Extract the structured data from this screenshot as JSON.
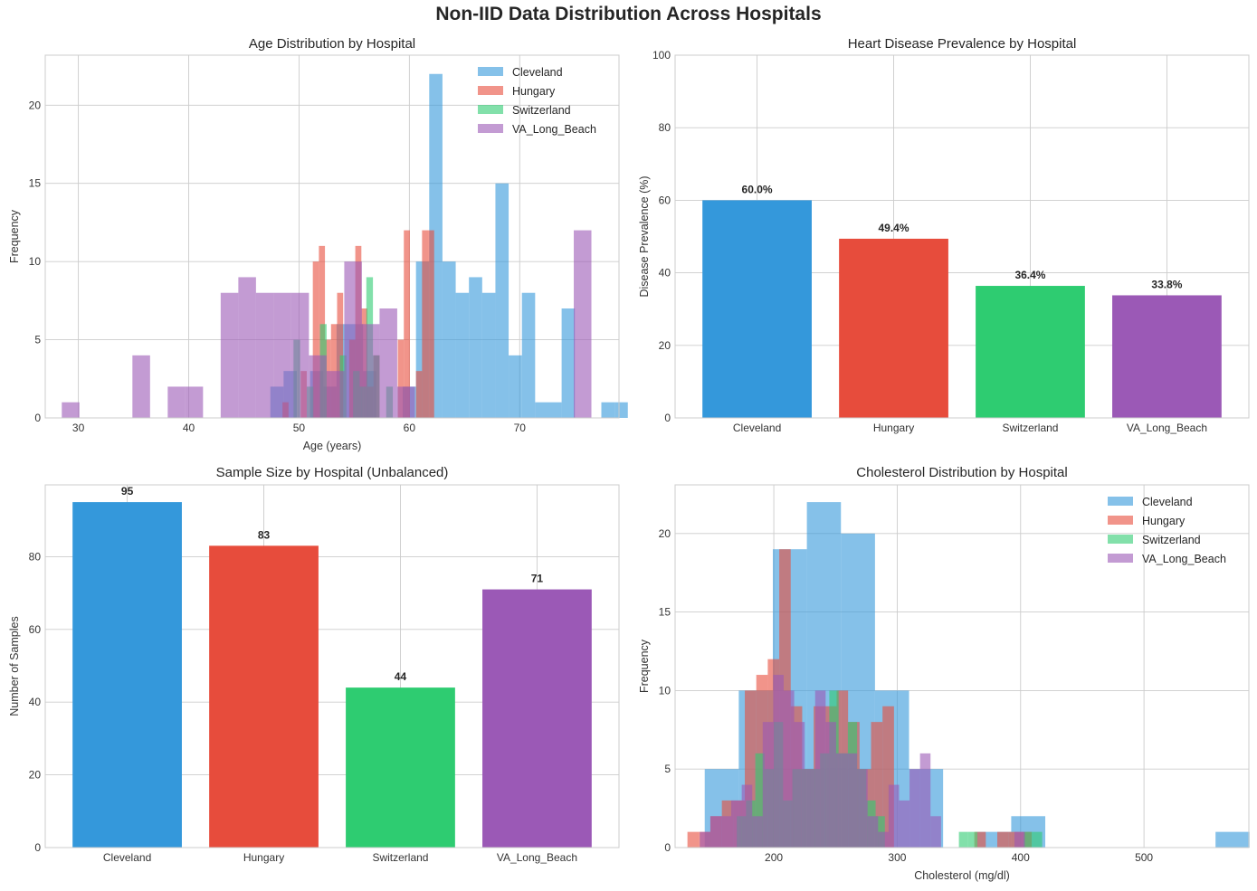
{
  "figure": {
    "title": "Non-IID Data Distribution Across Hospitals"
  },
  "colors": {
    "Cleveland": "#3498db",
    "Hungary": "#e74c3c",
    "Switzerland": "#2ecc71",
    "VA_Long_Beach": "#9b59b6"
  },
  "chart_data": [
    {
      "id": "age",
      "type": "histogram",
      "title": "Age Distribution by Hospital",
      "xlabel": "Age (years)",
      "ylabel": "Frequency",
      "xlim": [
        27,
        79
      ],
      "ylim": [
        0,
        23.2
      ],
      "xticks": [
        30,
        40,
        50,
        60,
        70
      ],
      "yticks": [
        0,
        5,
        10,
        15,
        20
      ],
      "legend": "top-right",
      "series": [
        {
          "name": "Cleveland",
          "bin_start": 47.4,
          "bin_width": 1.2,
          "counts": [
            2,
            3,
            0,
            3,
            2,
            6,
            6,
            3,
            0,
            0,
            2,
            10,
            22,
            10,
            8,
            9,
            8,
            15,
            4,
            8,
            1,
            1,
            7,
            0,
            0,
            1,
            1
          ]
        },
        {
          "name": "Hungary",
          "bin_start": 48.5,
          "bin_width": 0.55,
          "counts": [
            1,
            0,
            0,
            3,
            0,
            10,
            11,
            5,
            6,
            8,
            0,
            5,
            11,
            7,
            2,
            4,
            0,
            0,
            0,
            5,
            12,
            0,
            3,
            12,
            12
          ]
        },
        {
          "name": "Switzerland",
          "bin_start": 49.5,
          "bin_width": 0.6,
          "counts": [
            5,
            0,
            2,
            0,
            6,
            0,
            0,
            4,
            0,
            3,
            2,
            9,
            4,
            0,
            2
          ]
        },
        {
          "name": "VA_Long_Beach",
          "bin_start": 28.5,
          "bin_width": 1.6,
          "counts": [
            1,
            0,
            0,
            0,
            4,
            0,
            2,
            2,
            0,
            8,
            9,
            8,
            8,
            8,
            4,
            3,
            10,
            6,
            7,
            2,
            0,
            0,
            0,
            0,
            0,
            0,
            0,
            0,
            0,
            12,
            0
          ]
        }
      ]
    },
    {
      "id": "prevalence",
      "type": "bar",
      "title": "Heart Disease Prevalence by Hospital",
      "xlabel": "",
      "ylabel": "Disease Prevalence (%)",
      "categories": [
        "Cleveland",
        "Hungary",
        "Switzerland",
        "VA_Long_Beach"
      ],
      "values": [
        60.0,
        49.4,
        36.4,
        33.8
      ],
      "data_labels": [
        "60.0%",
        "49.4%",
        "36.4%",
        "33.8%"
      ],
      "ylim": [
        0,
        100
      ],
      "yticks": [
        0,
        20,
        40,
        60,
        80,
        100
      ]
    },
    {
      "id": "samples",
      "type": "bar",
      "title": "Sample Size by Hospital (Unbalanced)",
      "xlabel": "",
      "ylabel": "Number of Samples",
      "categories": [
        "Cleveland",
        "Hungary",
        "Switzerland",
        "VA_Long_Beach"
      ],
      "values": [
        95,
        83,
        44,
        71
      ],
      "data_labels": [
        "95",
        "83",
        "44",
        "71"
      ],
      "ylim": [
        0,
        99.75
      ],
      "yticks": [
        0,
        20,
        40,
        60,
        80
      ]
    },
    {
      "id": "chol",
      "type": "histogram",
      "title": "Cholesterol Distribution by Hospital",
      "xlabel": "Cholesterol (mg/dl)",
      "ylabel": "Frequency",
      "xlim": [
        120,
        585
      ],
      "ylim": [
        0,
        23.1
      ],
      "xticks": [
        200,
        300,
        400,
        500
      ],
      "yticks": [
        0,
        5,
        10,
        15,
        20
      ],
      "legend": "top-right",
      "series": [
        {
          "name": "Cleveland",
          "bin_start": 144,
          "bin_width": 27.6,
          "counts": [
            5,
            10,
            19,
            22,
            20,
            10,
            5,
            0,
            1,
            2,
            0,
            0,
            0,
            0,
            0,
            1
          ]
        },
        {
          "name": "Hungary",
          "bin_start": 130,
          "bin_width": 9.3,
          "counts": [
            1,
            1,
            2,
            3,
            3,
            10,
            11,
            12,
            19,
            9,
            5,
            9,
            9,
            10,
            8,
            5,
            8,
            9,
            0,
            0,
            0,
            0,
            0,
            0,
            0,
            1,
            0,
            1,
            1,
            1
          ]
        },
        {
          "name": "Switzerland",
          "bin_start": 170,
          "bin_width": 7.5,
          "counts": [
            2,
            3,
            6,
            5,
            8,
            3,
            5,
            5,
            5,
            6,
            10,
            6,
            8,
            5,
            3,
            2,
            0,
            0,
            0,
            0,
            0,
            0,
            0,
            0,
            1,
            1,
            0,
            0,
            0,
            0,
            0,
            1,
            1
          ]
        },
        {
          "name": "VA_Long_Beach",
          "bin_start": 140,
          "bin_width": 8.5,
          "counts": [
            1,
            2,
            2,
            3,
            4,
            2,
            8,
            11,
            10,
            8,
            5,
            10,
            8,
            6,
            6,
            5,
            2,
            1,
            4,
            3,
            5,
            6,
            2,
            0,
            0,
            0,
            0,
            0,
            0,
            0,
            1,
            0
          ]
        }
      ]
    }
  ]
}
